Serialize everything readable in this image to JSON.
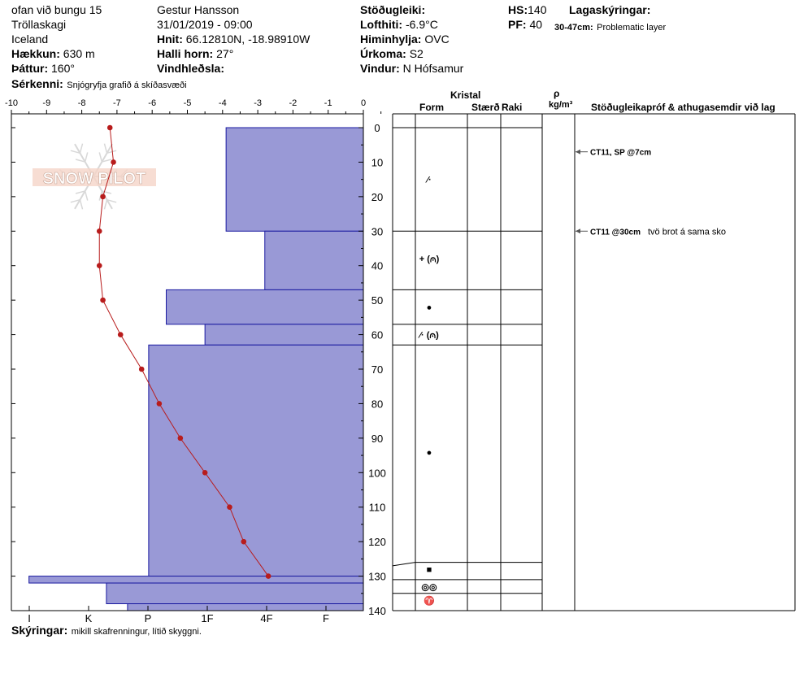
{
  "header": {
    "location": "ofan við bungu 15",
    "region": "Tröllaskagi",
    "country": "Iceland",
    "elevation_label": "Hækkun:",
    "elevation_value": "630 m",
    "aspect_label": "Þáttur:",
    "aspect_value": "160°",
    "observer": "Gestur Hansson",
    "datetime": "31/01/2019 - 09:00",
    "coords_label": "Hnit:",
    "coords_value": "66.12810N, -18.98910W",
    "slope_label": "Halli horn:",
    "slope_value": "27°",
    "wind_loading_label": "Vindhleðsla:",
    "stability_label": "Stöðugleiki:",
    "air_temp_label": "Lofthiti:",
    "air_temp_value": "-6.9°C",
    "sky_label": "Himinhylja:",
    "sky_value": "OVC",
    "precip_label": "Úrkoma:",
    "precip_value": "S2",
    "wind_label": "Vindur:",
    "wind_value": "N Hófsamur",
    "hs_label": "HS:",
    "hs_value": "140",
    "pf_label": "PF:",
    "pf_value": "40",
    "layer_notes_label": "Lagaskýringar:",
    "problem_range": "30-47cm:",
    "problem_text": "Problematic layer",
    "specifics_label": "Sérkenni:",
    "specifics_text": "Snjógryfja grafið á skíðasvæði"
  },
  "footer": {
    "notes_label": "Skýringar:",
    "notes_text": "mikill skafrenningur, lítið skyggni."
  },
  "logo_text": "SNOW PILOT",
  "table_headers": {
    "crystal": "Kristal",
    "form": "Form",
    "size": "Stærð",
    "moisture": "Raki",
    "rho": "ρ",
    "density_unit": "kg/m³",
    "tests": "Stöðugleikapróf & athugasemdir við lag"
  },
  "test_notes": [
    {
      "depth": 7,
      "label": "CT11, SP @7cm",
      "comment": ""
    },
    {
      "depth": 30,
      "label": "CT11 @30cm",
      "comment": "tvö brot á sama sko"
    }
  ],
  "grain_symbols": [
    {
      "depth": 15,
      "symbol": "⁄·"
    },
    {
      "depth": 38,
      "symbol": "+ (⩀)"
    },
    {
      "depth": 52,
      "symbol": "●"
    },
    {
      "depth": 60,
      "symbol": "⁄· (⩀)"
    },
    {
      "depth": 94,
      "symbol": "●"
    },
    {
      "depth": 128,
      "symbol": "■"
    },
    {
      "depth": 133,
      "symbol": "◎◎"
    },
    {
      "depth": 137,
      "symbol": "♈"
    }
  ],
  "layer_boundaries": [
    30,
    47,
    57,
    63,
    126,
    131,
    135
  ],
  "colors": {
    "hardness_fill": "#9999d6",
    "hardness_stroke": "#1a1aa0",
    "temp_line": "#b81c1c"
  },
  "chart_data": {
    "type": "area",
    "title": "",
    "temperature_axis": {
      "ticks": [
        "-10",
        "-9",
        "-8",
        "-7",
        "-6",
        "-5",
        "-4",
        "-3",
        "-2",
        "-1",
        "0"
      ],
      "range": [
        -10,
        0
      ],
      "unit": "°C"
    },
    "depth_axis": {
      "ticks": [
        "0",
        "10",
        "20",
        "30",
        "40",
        "50",
        "60",
        "70",
        "80",
        "90",
        "100",
        "110",
        "120",
        "130",
        "140"
      ],
      "range": [
        0,
        140
      ],
      "unit": "cm"
    },
    "hardness_axis": {
      "ticks": [
        "I",
        "K",
        "P",
        "1F",
        "4F",
        "F"
      ]
    },
    "temperature_profile": [
      {
        "depth": 0,
        "temp": -7.2
      },
      {
        "depth": 10,
        "temp": -7.1
      },
      {
        "depth": 20,
        "temp": -7.4
      },
      {
        "depth": 30,
        "temp": -7.5
      },
      {
        "depth": 40,
        "temp": -7.5
      },
      {
        "depth": 50,
        "temp": -7.4
      },
      {
        "depth": 60,
        "temp": -6.9
      },
      {
        "depth": 70,
        "temp": -6.3
      },
      {
        "depth": 80,
        "temp": -5.8
      },
      {
        "depth": 90,
        "temp": -5.2
      },
      {
        "depth": 100,
        "temp": -4.5
      },
      {
        "depth": 110,
        "temp": -3.8
      },
      {
        "depth": 120,
        "temp": -3.4
      },
      {
        "depth": 130,
        "temp": -2.7
      }
    ],
    "hardness_layers": [
      {
        "top": 0,
        "bottom": 30,
        "hardness_value": 3.9
      },
      {
        "top": 30,
        "bottom": 47,
        "hardness_value": 2.8
      },
      {
        "top": 47,
        "bottom": 57,
        "hardness_value": 5.6
      },
      {
        "top": 57,
        "bottom": 63,
        "hardness_value": 4.5
      },
      {
        "top": 63,
        "bottom": 130,
        "hardness_value": 6.1
      },
      {
        "top": 130,
        "bottom": 132,
        "hardness_value": 9.5
      },
      {
        "top": 132,
        "bottom": 138,
        "hardness_value": 7.3
      },
      {
        "top": 138,
        "bottom": 140,
        "hardness_value": 6.7
      }
    ]
  }
}
